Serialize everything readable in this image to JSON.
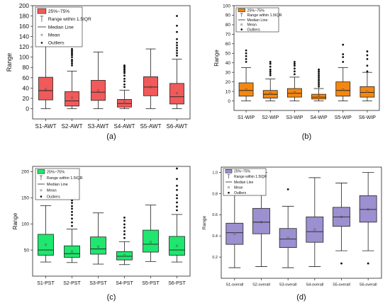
{
  "colors": {
    "a": "#f05a5a",
    "b": "#f5870f",
    "c": "#1ee66e",
    "d": "#9c90d0",
    "outline": "#222222"
  },
  "chart_data": [
    {
      "id": "a",
      "type": "box",
      "caption": "(a)",
      "ylabel": "Range",
      "ylim": [
        -20,
        200
      ],
      "yticks": [
        0,
        20,
        40,
        60,
        80,
        100,
        120,
        140,
        160,
        180,
        200
      ],
      "legend": {
        "position": "top-left",
        "items": [
          "25%~75%",
          "Range within 1.5IQR",
          "Median Line",
          "Mean",
          "Outliers"
        ]
      },
      "categories": [
        "S1-AWT",
        "S2-AWT",
        "S3-AWT",
        "S4-AWT",
        "S5-AWT",
        "S6-AWT"
      ],
      "boxes": [
        {
          "whislo": 0,
          "q1": 17,
          "med": 35,
          "mean": 38,
          "q3": 61,
          "whishi": 123,
          "fliers": []
        },
        {
          "whislo": 0,
          "q1": 5,
          "med": 15,
          "mean": 21,
          "q3": 33,
          "whishi": 73,
          "fliers": [
            84,
            88,
            92,
            95,
            100,
            104,
            107,
            110,
            113,
            116
          ]
        },
        {
          "whislo": 0,
          "q1": 16,
          "med": 32,
          "mean": 35,
          "q3": 55,
          "whishi": 110,
          "fliers": []
        },
        {
          "whislo": 0,
          "q1": 3,
          "med": 10,
          "mean": 14,
          "q3": 18,
          "whishi": 36,
          "fliers": [
            42,
            47,
            53,
            58,
            64,
            69,
            72,
            75,
            77,
            80,
            82,
            84
          ]
        },
        {
          "whislo": 0,
          "q1": 25,
          "med": 42,
          "mean": 42,
          "q3": 62,
          "whishi": 116,
          "fliers": []
        },
        {
          "whislo": 0,
          "q1": 9,
          "med": 23,
          "mean": 30,
          "q3": 49,
          "whishi": 96,
          "fliers": [
            103,
            108,
            113,
            118,
            123,
            128,
            135,
            149,
            161,
            180
          ]
        }
      ]
    },
    {
      "id": "b",
      "type": "box",
      "caption": "(b)",
      "ylabel": "Range",
      "ylim": [
        -10,
        100
      ],
      "yticks": [
        0,
        10,
        20,
        30,
        40,
        50,
        60,
        70,
        80,
        90,
        100
      ],
      "legend": {
        "position": "top-left",
        "items": [
          "25%~75%",
          "Range within 1.5IQR",
          "Median Line",
          "Mean",
          "Outliers"
        ]
      },
      "categories": [
        "S1-WIP",
        "S2-WIP",
        "S3-WIP",
        "S4-WIP",
        "S5-WIP",
        "S6-WIP"
      ],
      "boxes": [
        {
          "whislo": 0,
          "q1": 5,
          "med": 11,
          "mean": 12,
          "q3": 19,
          "whishi": 35,
          "fliers": [
            41,
            44,
            47,
            50,
            53
          ]
        },
        {
          "whislo": 0,
          "q1": 3,
          "med": 7,
          "mean": 8,
          "q3": 11,
          "whishi": 23,
          "fliers": [
            27,
            29,
            31,
            33,
            36,
            39,
            41
          ]
        },
        {
          "whislo": 0,
          "q1": 4,
          "med": 8,
          "mean": 9,
          "q3": 13,
          "whishi": 25,
          "fliers": [
            28,
            31,
            34,
            37,
            39,
            41
          ]
        },
        {
          "whislo": 0,
          "q1": 2,
          "med": 4,
          "mean": 5,
          "q3": 7,
          "whishi": 13,
          "fliers": [
            15,
            17,
            19,
            21,
            23,
            25,
            27,
            29,
            31,
            33
          ]
        },
        {
          "whislo": 0,
          "q1": 5,
          "med": 11,
          "mean": 12,
          "q3": 20,
          "whishi": 35,
          "fliers": [
            41,
            46,
            49,
            59
          ]
        },
        {
          "whislo": 0,
          "q1": 4,
          "med": 9,
          "mean": 10,
          "q3": 15,
          "whishi": 30,
          "fliers": [
            31,
            37,
            44,
            48,
            52
          ]
        }
      ]
    },
    {
      "id": "c",
      "type": "box",
      "caption": "(c)",
      "ylabel": "Range",
      "ylim": [
        0,
        210
      ],
      "yticks": [
        50,
        100,
        150,
        200
      ],
      "legend": {
        "position": "top-left",
        "items": [
          "25%~75%",
          "Range within 1.5IQR",
          "Median Line",
          "Mean",
          "Outliers"
        ]
      },
      "categories": [
        "S1-PST",
        "S2-PST",
        "S3-PST",
        "S4-PST",
        "S5-PST",
        "S6-PST"
      ],
      "boxes": [
        {
          "whislo": 27,
          "q1": 40,
          "med": 50,
          "mean": 60,
          "q3": 80,
          "whishi": 135,
          "fliers": []
        },
        {
          "whislo": 26,
          "q1": 36,
          "med": 43,
          "mean": 47,
          "q3": 58,
          "whishi": 90,
          "fliers": [
            96,
            103,
            110,
            117,
            123,
            129,
            134,
            140,
            145
          ]
        },
        {
          "whislo": 23,
          "q1": 42,
          "med": 52,
          "mean": 56,
          "q3": 75,
          "whishi": 121,
          "fliers": []
        },
        {
          "whislo": 22,
          "q1": 31,
          "med": 38,
          "mean": 40,
          "q3": 47,
          "whishi": 66,
          "fliers": [
            73,
            80,
            86,
            93,
            99,
            106,
            112
          ]
        },
        {
          "whislo": 28,
          "q1": 46,
          "med": 61,
          "mean": 65,
          "q3": 88,
          "whishi": 136,
          "fliers": []
        },
        {
          "whislo": 27,
          "q1": 40,
          "med": 50,
          "mean": 58,
          "q3": 76,
          "whishi": 118,
          "fliers": [
            126,
            133,
            141,
            149,
            155,
            165,
            173,
            186,
            206
          ]
        }
      ]
    },
    {
      "id": "d",
      "type": "box",
      "caption": "(d)",
      "ylabel": "Range",
      "ylim": [
        0,
        1.05
      ],
      "yticks": [
        0.2,
        0.4,
        0.6,
        0.8,
        1.0
      ],
      "ytick_labels": [
        "0.2",
        "0.4",
        "0.6",
        "0.8",
        "1.0"
      ],
      "legend": {
        "position": "top-left",
        "items": [
          "25%~75%",
          "Range within 1.5IQR",
          "Median Line",
          "Mean",
          "Outliers"
        ]
      },
      "categories": [
        "S1-overall",
        "S2-overall",
        "S3-overall",
        "S4-overall",
        "S5-overall",
        "S6-overall"
      ],
      "boxes": [
        {
          "whislo": 0.1,
          "q1": 0.32,
          "med": 0.43,
          "mean": 0.42,
          "q3": 0.52,
          "whishi": 0.79,
          "fliers": []
        },
        {
          "whislo": 0.11,
          "q1": 0.42,
          "med": 0.53,
          "mean": 0.53,
          "q3": 0.66,
          "whishi": 1.0,
          "fliers": []
        },
        {
          "whislo": 0.1,
          "q1": 0.29,
          "med": 0.37,
          "mean": 0.38,
          "q3": 0.47,
          "whishi": 0.68,
          "fliers": [
            0.84
          ]
        },
        {
          "whislo": 0.11,
          "q1": 0.34,
          "med": 0.44,
          "mean": 0.46,
          "q3": 0.58,
          "whishi": 0.95,
          "fliers": []
        },
        {
          "whislo": 0.26,
          "q1": 0.49,
          "med": 0.58,
          "mean": 0.58,
          "q3": 0.67,
          "whishi": 0.9,
          "fliers": [
            0.14
          ]
        },
        {
          "whislo": 0.26,
          "q1": 0.53,
          "med": 0.65,
          "mean": 0.65,
          "q3": 0.78,
          "whishi": 1.0,
          "fliers": [
            0.14
          ]
        }
      ]
    }
  ]
}
